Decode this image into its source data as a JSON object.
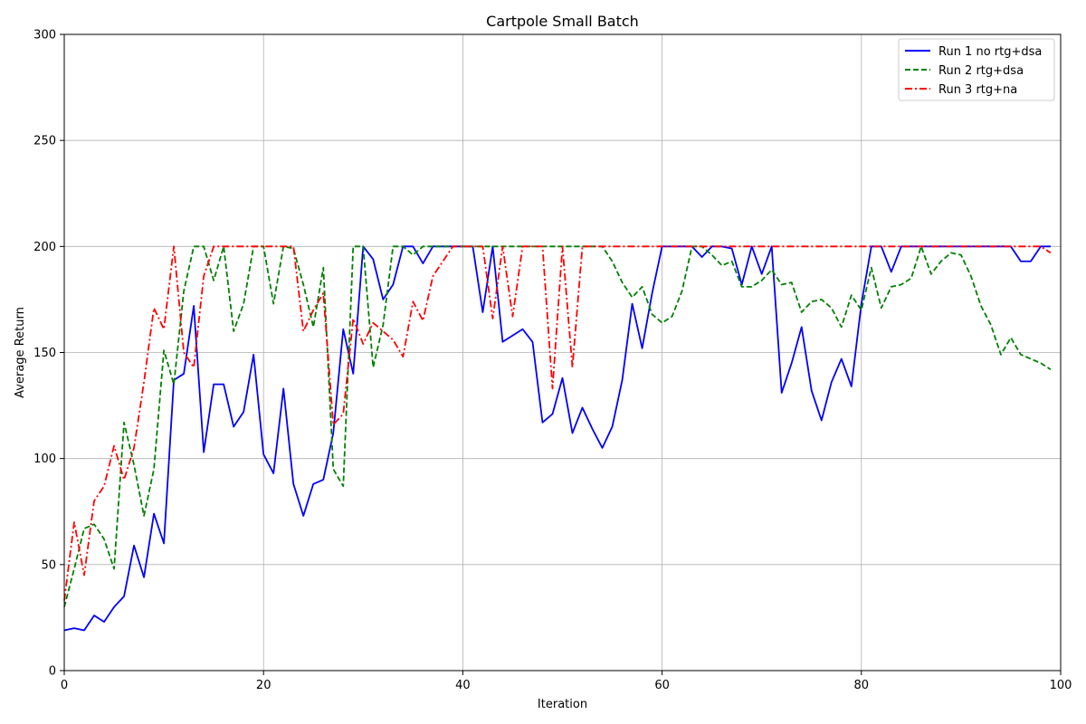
{
  "chart_data": {
    "type": "line",
    "title": "Cartpole Small Batch",
    "xlabel": "Iteration",
    "ylabel": "Average Return",
    "xlim": [
      0,
      100
    ],
    "ylim": [
      0,
      300
    ],
    "xticks": [
      "0",
      "20",
      "40",
      "60",
      "80",
      "100"
    ],
    "yticks": [
      "0",
      "50",
      "100",
      "150",
      "200",
      "250",
      "300"
    ],
    "grid": true,
    "legend_position": "top-right",
    "series": [
      {
        "name": "Run 1 no rtg+dsa",
        "color": "#0000ff",
        "style": "solid",
        "values": [
          19,
          20,
          19,
          26,
          23,
          30,
          35,
          59,
          44,
          74,
          60,
          137,
          140,
          172,
          103,
          135,
          135,
          115,
          122,
          149,
          102,
          93,
          133,
          88,
          73,
          88,
          90,
          112,
          161,
          140,
          200,
          194,
          175,
          182,
          200,
          200,
          192,
          200,
          200,
          200,
          200,
          200,
          169,
          200,
          155,
          158,
          161,
          155,
          117,
          121,
          138,
          112,
          124,
          114,
          105,
          115,
          137,
          173,
          152,
          178,
          200,
          200,
          200,
          200,
          195,
          200,
          200,
          199,
          182,
          200,
          187,
          200,
          131,
          145,
          162,
          132,
          118,
          136,
          147,
          134,
          173,
          200,
          200,
          188,
          200,
          200,
          200,
          200,
          200,
          200,
          200,
          200,
          200,
          200,
          200,
          200,
          193,
          193,
          200,
          200
        ]
      },
      {
        "name": "Run 2 rtg+dsa",
        "color": "#008000",
        "style": "dashed",
        "values": [
          30,
          48,
          67,
          69,
          62,
          48,
          117,
          97,
          73,
          95,
          151,
          135,
          179,
          200,
          200,
          184,
          200,
          160,
          173,
          200,
          200,
          173,
          200,
          199,
          182,
          162,
          190,
          95,
          87,
          200,
          200,
          143,
          163,
          200,
          200,
          196,
          200,
          200,
          200,
          200,
          200,
          200,
          200,
          200,
          200,
          200,
          200,
          200,
          200,
          200,
          200,
          200,
          200,
          200,
          200,
          193,
          183,
          176,
          181,
          168,
          164,
          167,
          179,
          200,
          200,
          196,
          191,
          193,
          181,
          181,
          184,
          189,
          182,
          183,
          169,
          174,
          175,
          171,
          162,
          177,
          170,
          190,
          171,
          181,
          182,
          185,
          200,
          187,
          193,
          197,
          196,
          186,
          172,
          163,
          149,
          157,
          149,
          147,
          145,
          142
        ]
      },
      {
        "name": "Run 3 rtg+na",
        "color": "#ff0000",
        "style": "dashdot",
        "values": [
          33,
          70,
          45,
          80,
          87,
          106,
          90,
          105,
          136,
          171,
          161,
          200,
          150,
          143,
          186,
          200,
          200,
          200,
          200,
          200,
          200,
          200,
          200,
          200,
          160,
          170,
          178,
          116,
          121,
          166,
          154,
          164,
          160,
          156,
          148,
          174,
          165,
          186,
          193,
          200,
          200,
          200,
          200,
          166,
          200,
          167,
          200,
          200,
          200,
          133,
          200,
          143,
          200,
          200,
          200,
          200,
          200,
          200,
          200,
          200,
          200,
          200,
          200,
          200,
          200,
          200,
          200,
          200,
          200,
          200,
          200,
          200,
          200,
          200,
          200,
          200,
          200,
          200,
          200,
          200,
          200,
          200,
          200,
          200,
          200,
          200,
          200,
          200,
          200,
          200,
          200,
          200,
          200,
          200,
          200,
          200,
          200,
          200,
          200,
          197
        ]
      }
    ]
  }
}
